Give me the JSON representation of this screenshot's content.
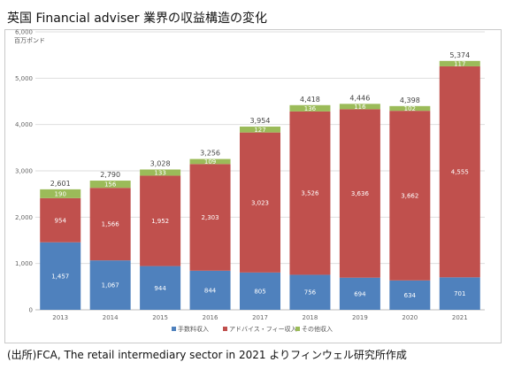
{
  "title": "英国 Financial adviser 業界の収益構造の変化",
  "source_note": "(出所)FCA, The retail intermediary sector in 2021 よりフィンウェル研究所作成",
  "colors": {
    "commission": "#4f81bd",
    "advice_fee": "#c0504d",
    "other": "#9bbb59"
  },
  "chart_data": {
    "type": "bar",
    "stacked": true,
    "ylabel": "百万ポンド",
    "ylim": [
      0,
      6000
    ],
    "yticks": [
      "0",
      "1,000",
      "2,000",
      "3,000",
      "4,000",
      "5,000",
      "6,000"
    ],
    "categories": [
      "2013",
      "2014",
      "2015",
      "2016",
      "2017",
      "2018",
      "2019",
      "2020",
      "2021"
    ],
    "series": [
      {
        "name": "手数料収入",
        "labels": [
          "1,457",
          "1,067",
          "944",
          "844",
          "805",
          "756",
          "694",
          "634",
          "701"
        ],
        "values": [
          1457,
          1067,
          944,
          844,
          805,
          756,
          694,
          634,
          701
        ]
      },
      {
        "name": "アドバイス・フィー収入",
        "labels": [
          "954",
          "1,566",
          "1,952",
          "2,303",
          "3,023",
          "3,526",
          "3,636",
          "3,662",
          "4,555"
        ],
        "values": [
          954,
          1566,
          1952,
          2303,
          3023,
          3526,
          3636,
          3662,
          4555
        ]
      },
      {
        "name": "その他収入",
        "labels": [
          "190",
          "156",
          "133",
          "109",
          "127",
          "136",
          "116",
          "102",
          "117"
        ],
        "values": [
          190,
          156,
          133,
          109,
          127,
          136,
          116,
          102,
          117
        ]
      }
    ],
    "totals": [
      "2,601",
      "2,790",
      "3,028",
      "3,256",
      "3,954",
      "4,418",
      "4,446",
      "4,398",
      "5,374"
    ],
    "legend_position": "bottom",
    "grid": true
  }
}
